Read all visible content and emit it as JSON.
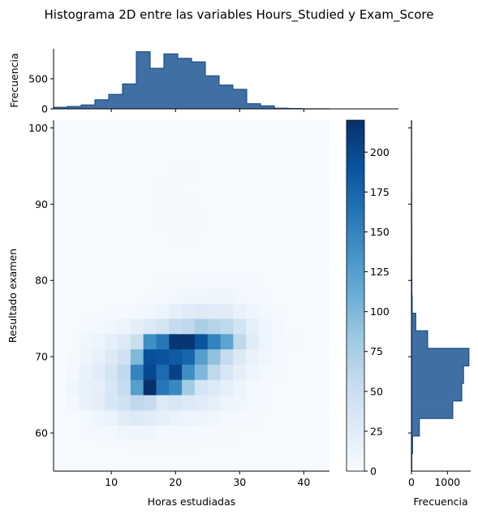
{
  "chart_data": {
    "type": "heatmap",
    "title": "Histograma 2D entre las variables Hours_Studied y Exam_Score",
    "xlabel": "Horas estudiadas",
    "ylabel": "Resultado examen",
    "xlim": [
      1,
      44
    ],
    "ylim": [
      55,
      101
    ],
    "x_ticks": [
      "10",
      "20",
      "30",
      "40"
    ],
    "y_ticks": [
      "60",
      "70",
      "80",
      "90",
      "100"
    ],
    "cmap": "Blues",
    "heatmap": {
      "x_start": 3,
      "x_bin": 2,
      "n_x": 20,
      "y_start": 57,
      "y_bin": 2,
      "n_y": 22,
      "rows_from_bottom": [
        [
          0,
          0,
          1,
          2,
          2,
          3,
          3,
          3,
          3,
          3,
          2,
          2,
          2,
          2,
          1,
          1,
          1,
          0,
          0,
          0
        ],
        [
          0,
          5,
          5,
          5,
          8,
          10,
          10,
          6,
          4,
          4,
          4,
          3,
          3,
          2,
          1,
          1,
          1,
          0,
          0,
          0
        ],
        [
          2,
          3,
          10,
          14,
          25,
          30,
          25,
          20,
          14,
          12,
          10,
          8,
          6,
          4,
          3,
          2,
          1,
          1,
          0,
          0
        ],
        [
          5,
          15,
          22,
          35,
          45,
          60,
          55,
          30,
          35,
          30,
          25,
          20,
          12,
          8,
          5,
          3,
          2,
          1,
          0,
          0
        ],
        [
          8,
          18,
          20,
          35,
          55,
          125,
          220,
          160,
          145,
          80,
          40,
          30,
          20,
          12,
          6,
          4,
          2,
          1,
          0,
          0
        ],
        [
          6,
          15,
          25,
          40,
          60,
          150,
          200,
          170,
          205,
          140,
          100,
          60,
          35,
          20,
          10,
          5,
          3,
          1,
          0,
          0
        ],
        [
          3,
          10,
          18,
          30,
          45,
          100,
          195,
          190,
          185,
          175,
          125,
          90,
          55,
          30,
          15,
          8,
          4,
          2,
          1,
          0
        ],
        [
          2,
          8,
          12,
          20,
          30,
          50,
          140,
          160,
          215,
          215,
          190,
          150,
          120,
          60,
          25,
          12,
          6,
          3,
          1,
          0
        ],
        [
          1,
          3,
          5,
          8,
          12,
          20,
          30,
          40,
          55,
          60,
          75,
          65,
          60,
          40,
          20,
          10,
          5,
          2,
          1,
          0
        ],
        [
          0,
          1,
          2,
          3,
          4,
          6,
          8,
          12,
          20,
          25,
          28,
          25,
          25,
          15,
          10,
          6,
          3,
          2,
          0,
          0
        ],
        [
          0,
          0,
          1,
          1,
          2,
          2,
          3,
          4,
          6,
          8,
          8,
          10,
          10,
          6,
          4,
          3,
          2,
          1,
          0,
          0
        ],
        [
          0,
          0,
          0,
          1,
          1,
          2,
          2,
          3,
          3,
          3,
          4,
          4,
          5,
          4,
          3,
          2,
          2,
          1,
          1,
          0
        ],
        [
          0,
          0,
          0,
          0,
          1,
          1,
          1,
          2,
          2,
          2,
          2,
          2,
          2,
          2,
          2,
          2,
          1,
          1,
          1,
          0
        ],
        [
          0,
          0,
          0,
          1,
          1,
          1,
          2,
          2,
          2,
          2,
          2,
          2,
          2,
          2,
          2,
          1,
          1,
          1,
          0,
          0
        ],
        [
          0,
          0,
          1,
          1,
          1,
          2,
          2,
          2,
          3,
          3,
          2,
          2,
          2,
          2,
          1,
          1,
          1,
          0,
          0,
          0
        ],
        [
          0,
          1,
          1,
          1,
          2,
          2,
          2,
          3,
          3,
          3,
          3,
          2,
          2,
          2,
          1,
          1,
          0,
          0,
          0,
          0
        ],
        [
          0,
          0,
          1,
          1,
          1,
          2,
          2,
          3,
          3,
          3,
          2,
          2,
          2,
          1,
          1,
          1,
          0,
          0,
          0,
          0
        ],
        [
          0,
          1,
          1,
          1,
          2,
          2,
          2,
          3,
          3,
          2,
          2,
          2,
          2,
          1,
          1,
          0,
          0,
          0,
          0,
          0
        ],
        [
          0,
          0,
          1,
          1,
          1,
          2,
          2,
          2,
          3,
          3,
          2,
          2,
          1,
          1,
          1,
          0,
          0,
          0,
          0,
          0
        ],
        [
          0,
          0,
          0,
          1,
          1,
          1,
          2,
          2,
          2,
          2,
          2,
          1,
          1,
          1,
          0,
          0,
          0,
          0,
          0,
          0
        ],
        [
          0,
          0,
          0,
          0,
          1,
          1,
          1,
          2,
          2,
          2,
          1,
          1,
          1,
          0,
          0,
          0,
          0,
          0,
          0,
          0
        ],
        [
          0,
          0,
          0,
          0,
          0,
          1,
          1,
          1,
          1,
          1,
          1,
          1,
          0,
          0,
          0,
          0,
          0,
          0,
          0,
          0
        ]
      ]
    },
    "colorbar": {
      "min": 0,
      "max": 220,
      "ticks": [
        "0",
        "25",
        "50",
        "75",
        "100",
        "125",
        "150",
        "175",
        "200"
      ]
    },
    "marginal_x": {
      "ylabel": "Frecuencia",
      "ticks": [
        "0",
        "500"
      ],
      "ylim": [
        0,
        1000
      ],
      "bin_edges": [
        1,
        3.15,
        5.3,
        7.45,
        9.6,
        11.75,
        13.9,
        16.05,
        18.2,
        20.35,
        22.5,
        24.65,
        26.8,
        28.95,
        31.1,
        33.25,
        35.4,
        37.55,
        39.7,
        41.85,
        44
      ],
      "values": [
        25,
        40,
        65,
        150,
        240,
        415,
        950,
        675,
        915,
        840,
        780,
        550,
        395,
        325,
        85,
        50,
        10,
        5,
        0,
        0
      ]
    },
    "marginal_y": {
      "xlabel": "Frecuencia",
      "ticks": [
        "0",
        "1000"
      ],
      "xlim": [
        0,
        1650
      ],
      "bin_edges": [
        55,
        57.3,
        59.6,
        61.9,
        64.2,
        66.5,
        68.8,
        71.1,
        73.4,
        75.7,
        78,
        80.3,
        82.6,
        84.9,
        87.2,
        89.5,
        91.8,
        94.1,
        96.4,
        98.7,
        101
      ],
      "values": [
        10,
        30,
        220,
        1150,
        1400,
        1450,
        1600,
        450,
        120,
        20,
        12,
        10,
        8,
        8,
        6,
        6,
        5,
        5,
        4,
        4
      ]
    }
  }
}
